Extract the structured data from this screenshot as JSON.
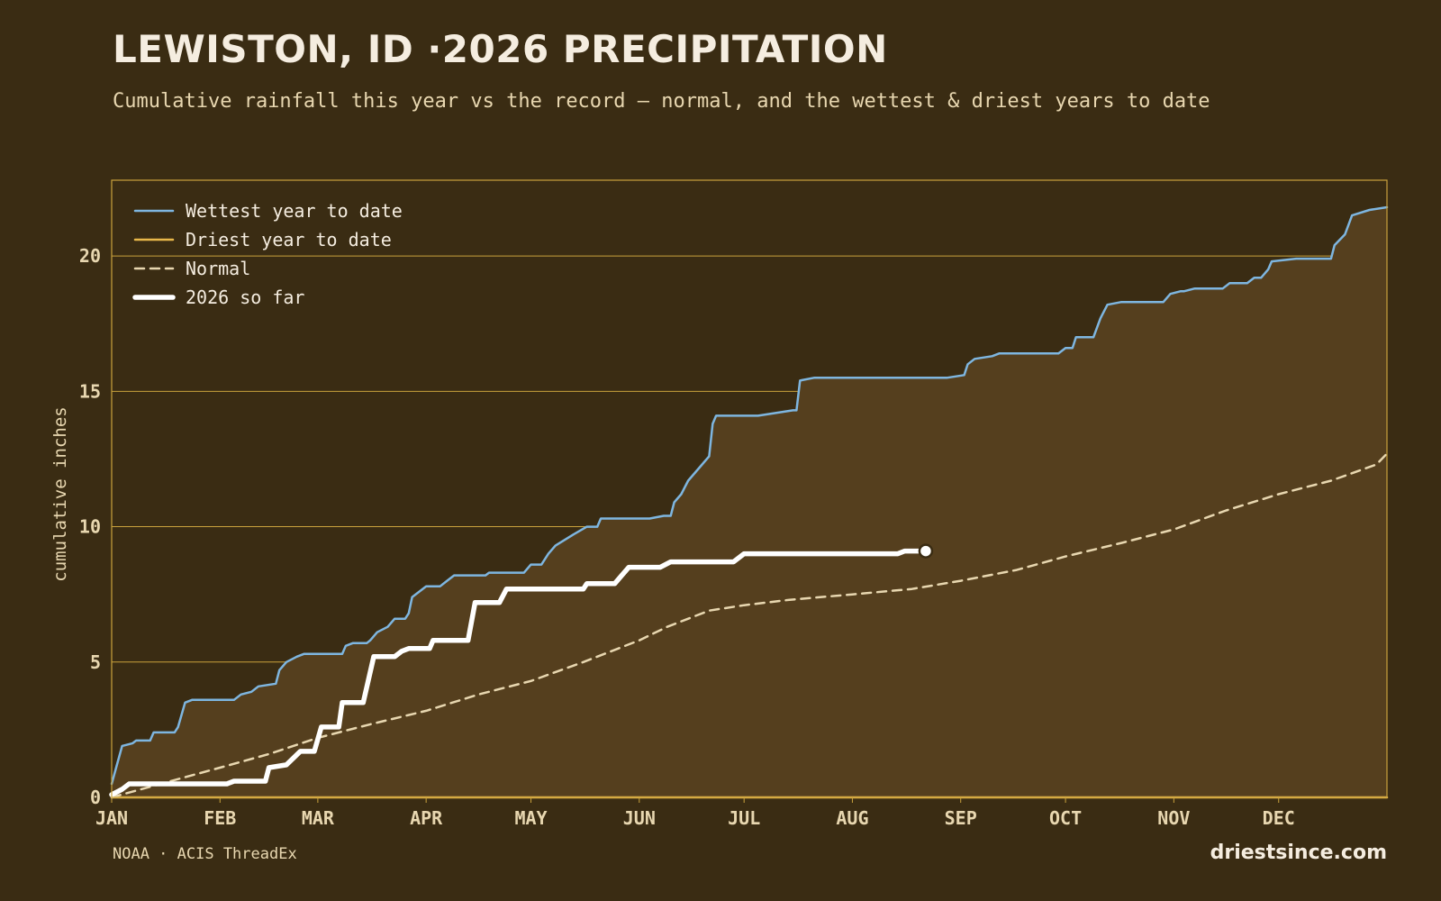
{
  "header": {
    "title": "LEWISTON, ID ·2026 PRECIPITATION",
    "subtitle": "Cumulative rainfall this year vs the record — normal, and the wettest & driest years to date"
  },
  "footer": {
    "source": "NOAA · ACIS ThreadEx",
    "brand": "driestsince.com"
  },
  "colors": {
    "background": "#3a2c13",
    "fill": "#553f1e",
    "frame": "#c9a23d",
    "gridline": "#c9a23d",
    "wettest": "#7eb6e0",
    "driest": "#e8b84a",
    "normal": "#e8d7b0",
    "current": "#ffffff"
  },
  "chart_data": {
    "type": "line",
    "title": "LEWISTON, ID ·2026 PRECIPITATION",
    "ylabel": "cumulative inches",
    "xlabel": "",
    "x_unit": "day of year",
    "xlim": [
      1,
      366
    ],
    "ylim": [
      0,
      22.8
    ],
    "yticks": [
      0,
      5,
      10,
      15,
      20
    ],
    "xticks": [
      {
        "label": "JAN",
        "day": 1
      },
      {
        "label": "FEB",
        "day": 32
      },
      {
        "label": "MAR",
        "day": 60
      },
      {
        "label": "APR",
        "day": 91
      },
      {
        "label": "MAY",
        "day": 121
      },
      {
        "label": "JUN",
        "day": 152
      },
      {
        "label": "JUL",
        "day": 182
      },
      {
        "label": "AUG",
        "day": 213
      },
      {
        "label": "SEP",
        "day": 244
      },
      {
        "label": "OCT",
        "day": 274
      },
      {
        "label": "NOV",
        "day": 305
      },
      {
        "label": "DEC",
        "day": 335
      }
    ],
    "grid": true,
    "legend_position": "top-left",
    "series": [
      {
        "name": "Wettest year to date",
        "style": "solid",
        "points": [
          [
            1,
            0.5
          ],
          [
            4,
            1.9
          ],
          [
            7,
            2.0
          ],
          [
            8,
            2.1
          ],
          [
            12,
            2.1
          ],
          [
            13,
            2.4
          ],
          [
            19,
            2.4
          ],
          [
            20,
            2.6
          ],
          [
            22,
            3.5
          ],
          [
            24,
            3.6
          ],
          [
            36,
            3.6
          ],
          [
            38,
            3.8
          ],
          [
            41,
            3.9
          ],
          [
            43,
            4.1
          ],
          [
            48,
            4.2
          ],
          [
            49,
            4.7
          ],
          [
            51,
            5.0
          ],
          [
            54,
            5.2
          ],
          [
            56,
            5.3
          ],
          [
            67,
            5.3
          ],
          [
            68,
            5.6
          ],
          [
            70,
            5.7
          ],
          [
            74,
            5.7
          ],
          [
            75,
            5.8
          ],
          [
            77,
            6.1
          ],
          [
            80,
            6.3
          ],
          [
            82,
            6.6
          ],
          [
            85,
            6.6
          ],
          [
            86,
            6.8
          ],
          [
            87,
            7.4
          ],
          [
            89,
            7.6
          ],
          [
            91,
            7.8
          ],
          [
            95,
            7.8
          ],
          [
            97,
            8.0
          ],
          [
            99,
            8.2
          ],
          [
            108,
            8.2
          ],
          [
            109,
            8.3
          ],
          [
            119,
            8.3
          ],
          [
            121,
            8.6
          ],
          [
            124,
            8.6
          ],
          [
            126,
            9.0
          ],
          [
            128,
            9.3
          ],
          [
            133,
            9.7
          ],
          [
            137,
            10.0
          ],
          [
            140,
            10.0
          ],
          [
            141,
            10.3
          ],
          [
            155,
            10.3
          ],
          [
            159,
            10.4
          ],
          [
            161,
            10.4
          ],
          [
            162,
            10.9
          ],
          [
            164,
            11.2
          ],
          [
            166,
            11.7
          ],
          [
            170,
            12.3
          ],
          [
            172,
            12.6
          ],
          [
            173,
            13.8
          ],
          [
            174,
            14.1
          ],
          [
            186,
            14.1
          ],
          [
            191,
            14.2
          ],
          [
            196,
            14.3
          ],
          [
            197,
            14.3
          ],
          [
            198,
            15.4
          ],
          [
            202,
            15.5
          ],
          [
            240,
            15.5
          ],
          [
            245,
            15.6
          ],
          [
            246,
            16.0
          ],
          [
            248,
            16.2
          ],
          [
            253,
            16.3
          ],
          [
            255,
            16.4
          ],
          [
            272,
            16.4
          ],
          [
            274,
            16.6
          ],
          [
            276,
            16.6
          ],
          [
            277,
            17.0
          ],
          [
            282,
            17.0
          ],
          [
            284,
            17.7
          ],
          [
            286,
            18.2
          ],
          [
            290,
            18.3
          ],
          [
            302,
            18.3
          ],
          [
            304,
            18.6
          ],
          [
            307,
            18.7
          ],
          [
            308,
            18.7
          ],
          [
            311,
            18.8
          ],
          [
            319,
            18.8
          ],
          [
            321,
            19.0
          ],
          [
            326,
            19.0
          ],
          [
            328,
            19.2
          ],
          [
            330,
            19.2
          ],
          [
            332,
            19.5
          ],
          [
            333,
            19.8
          ],
          [
            340,
            19.9
          ],
          [
            350,
            19.9
          ],
          [
            351,
            20.4
          ],
          [
            354,
            20.8
          ],
          [
            356,
            21.5
          ],
          [
            361,
            21.7
          ],
          [
            366,
            21.8
          ]
        ]
      },
      {
        "name": "Driest year to date",
        "style": "solid",
        "points": [
          [
            1,
            0.0
          ],
          [
            366,
            0.0
          ]
        ]
      },
      {
        "name": "Normal",
        "style": "dashed",
        "points": [
          [
            1,
            0.0
          ],
          [
            15,
            0.5
          ],
          [
            32,
            1.1
          ],
          [
            46,
            1.6
          ],
          [
            60,
            2.2
          ],
          [
            75,
            2.7
          ],
          [
            91,
            3.2
          ],
          [
            106,
            3.8
          ],
          [
            121,
            4.3
          ],
          [
            136,
            5.0
          ],
          [
            152,
            5.8
          ],
          [
            160,
            6.3
          ],
          [
            172,
            6.9
          ],
          [
            182,
            7.1
          ],
          [
            195,
            7.3
          ],
          [
            213,
            7.5
          ],
          [
            230,
            7.7
          ],
          [
            244,
            8.0
          ],
          [
            260,
            8.4
          ],
          [
            274,
            8.9
          ],
          [
            290,
            9.4
          ],
          [
            305,
            9.9
          ],
          [
            320,
            10.6
          ],
          [
            335,
            11.2
          ],
          [
            350,
            11.7
          ],
          [
            363,
            12.3
          ],
          [
            366,
            12.7
          ]
        ]
      },
      {
        "name": "2026 so far",
        "style": "bold",
        "points": [
          [
            1,
            0.1
          ],
          [
            4,
            0.3
          ],
          [
            6,
            0.5
          ],
          [
            34,
            0.5
          ],
          [
            36,
            0.6
          ],
          [
            45,
            0.6
          ],
          [
            46,
            1.1
          ],
          [
            51,
            1.2
          ],
          [
            55,
            1.7
          ],
          [
            59,
            1.7
          ],
          [
            61,
            2.6
          ],
          [
            66,
            2.6
          ],
          [
            67,
            3.5
          ],
          [
            73,
            3.5
          ],
          [
            76,
            5.2
          ],
          [
            82,
            5.2
          ],
          [
            84,
            5.4
          ],
          [
            86,
            5.5
          ],
          [
            92,
            5.5
          ],
          [
            93,
            5.8
          ],
          [
            103,
            5.8
          ],
          [
            105,
            7.2
          ],
          [
            112,
            7.2
          ],
          [
            114,
            7.7
          ],
          [
            136,
            7.7
          ],
          [
            137,
            7.9
          ],
          [
            145,
            7.9
          ],
          [
            147,
            8.2
          ],
          [
            149,
            8.5
          ],
          [
            158,
            8.5
          ],
          [
            161,
            8.7
          ],
          [
            179,
            8.7
          ],
          [
            182,
            9.0
          ],
          [
            212,
            9.0
          ],
          [
            218,
            9.0
          ],
          [
            226,
            9.0
          ],
          [
            228,
            9.1
          ],
          [
            234,
            9.1
          ]
        ]
      }
    ]
  }
}
